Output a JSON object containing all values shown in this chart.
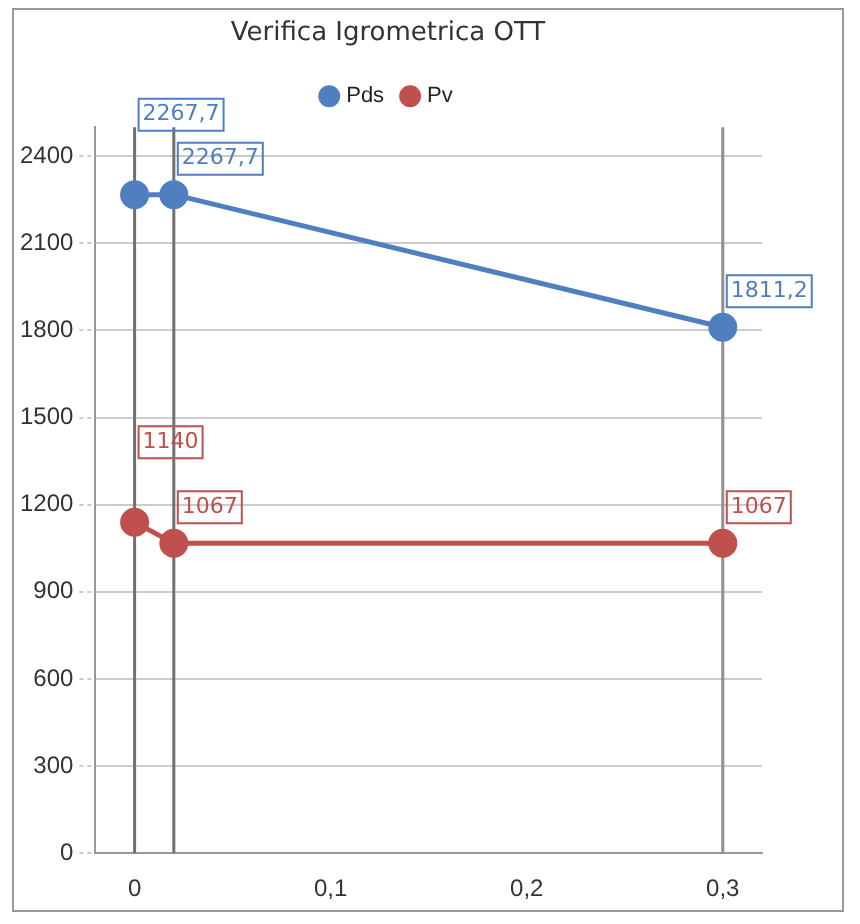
{
  "chart_data": {
    "type": "line",
    "title": "Verifica Igrometrica OTT",
    "series": [
      {
        "name": "Pds",
        "color": "#4f7fc0",
        "x": [
          0,
          0.02,
          0.3
        ],
        "values": [
          2267.7,
          2267.7,
          1811.2
        ],
        "value_labels": [
          "2267,7",
          "2267,7",
          "1811,2"
        ]
      },
      {
        "name": "Pv",
        "color": "#c0504d",
        "x": [
          0,
          0.02,
          0.3
        ],
        "values": [
          1140,
          1067,
          1067
        ],
        "value_labels": [
          "1140",
          "1067",
          "1067"
        ]
      }
    ],
    "xlim": [
      -0.02,
      0.32
    ],
    "xticks": [
      0,
      {
        "value": 0.1,
        "label": "0,1"
      },
      {
        "value": 0.2,
        "label": "0,2"
      },
      {
        "value": 0.3,
        "label": "0,3"
      }
    ],
    "ylim": [
      0,
      2500
    ],
    "yticks": [
      0,
      300,
      600,
      900,
      1200,
      1500,
      1800,
      2100,
      2400
    ],
    "ref_lines": [
      {
        "axis": "x",
        "value": 0,
        "color": "#707070"
      },
      {
        "axis": "x",
        "value": 0.02,
        "color": "#707070"
      },
      {
        "axis": "x",
        "value": 0.3,
        "color": "#909090"
      }
    ],
    "grid": "y",
    "legend": "top",
    "marker": "circle",
    "line_style": "solid"
  }
}
